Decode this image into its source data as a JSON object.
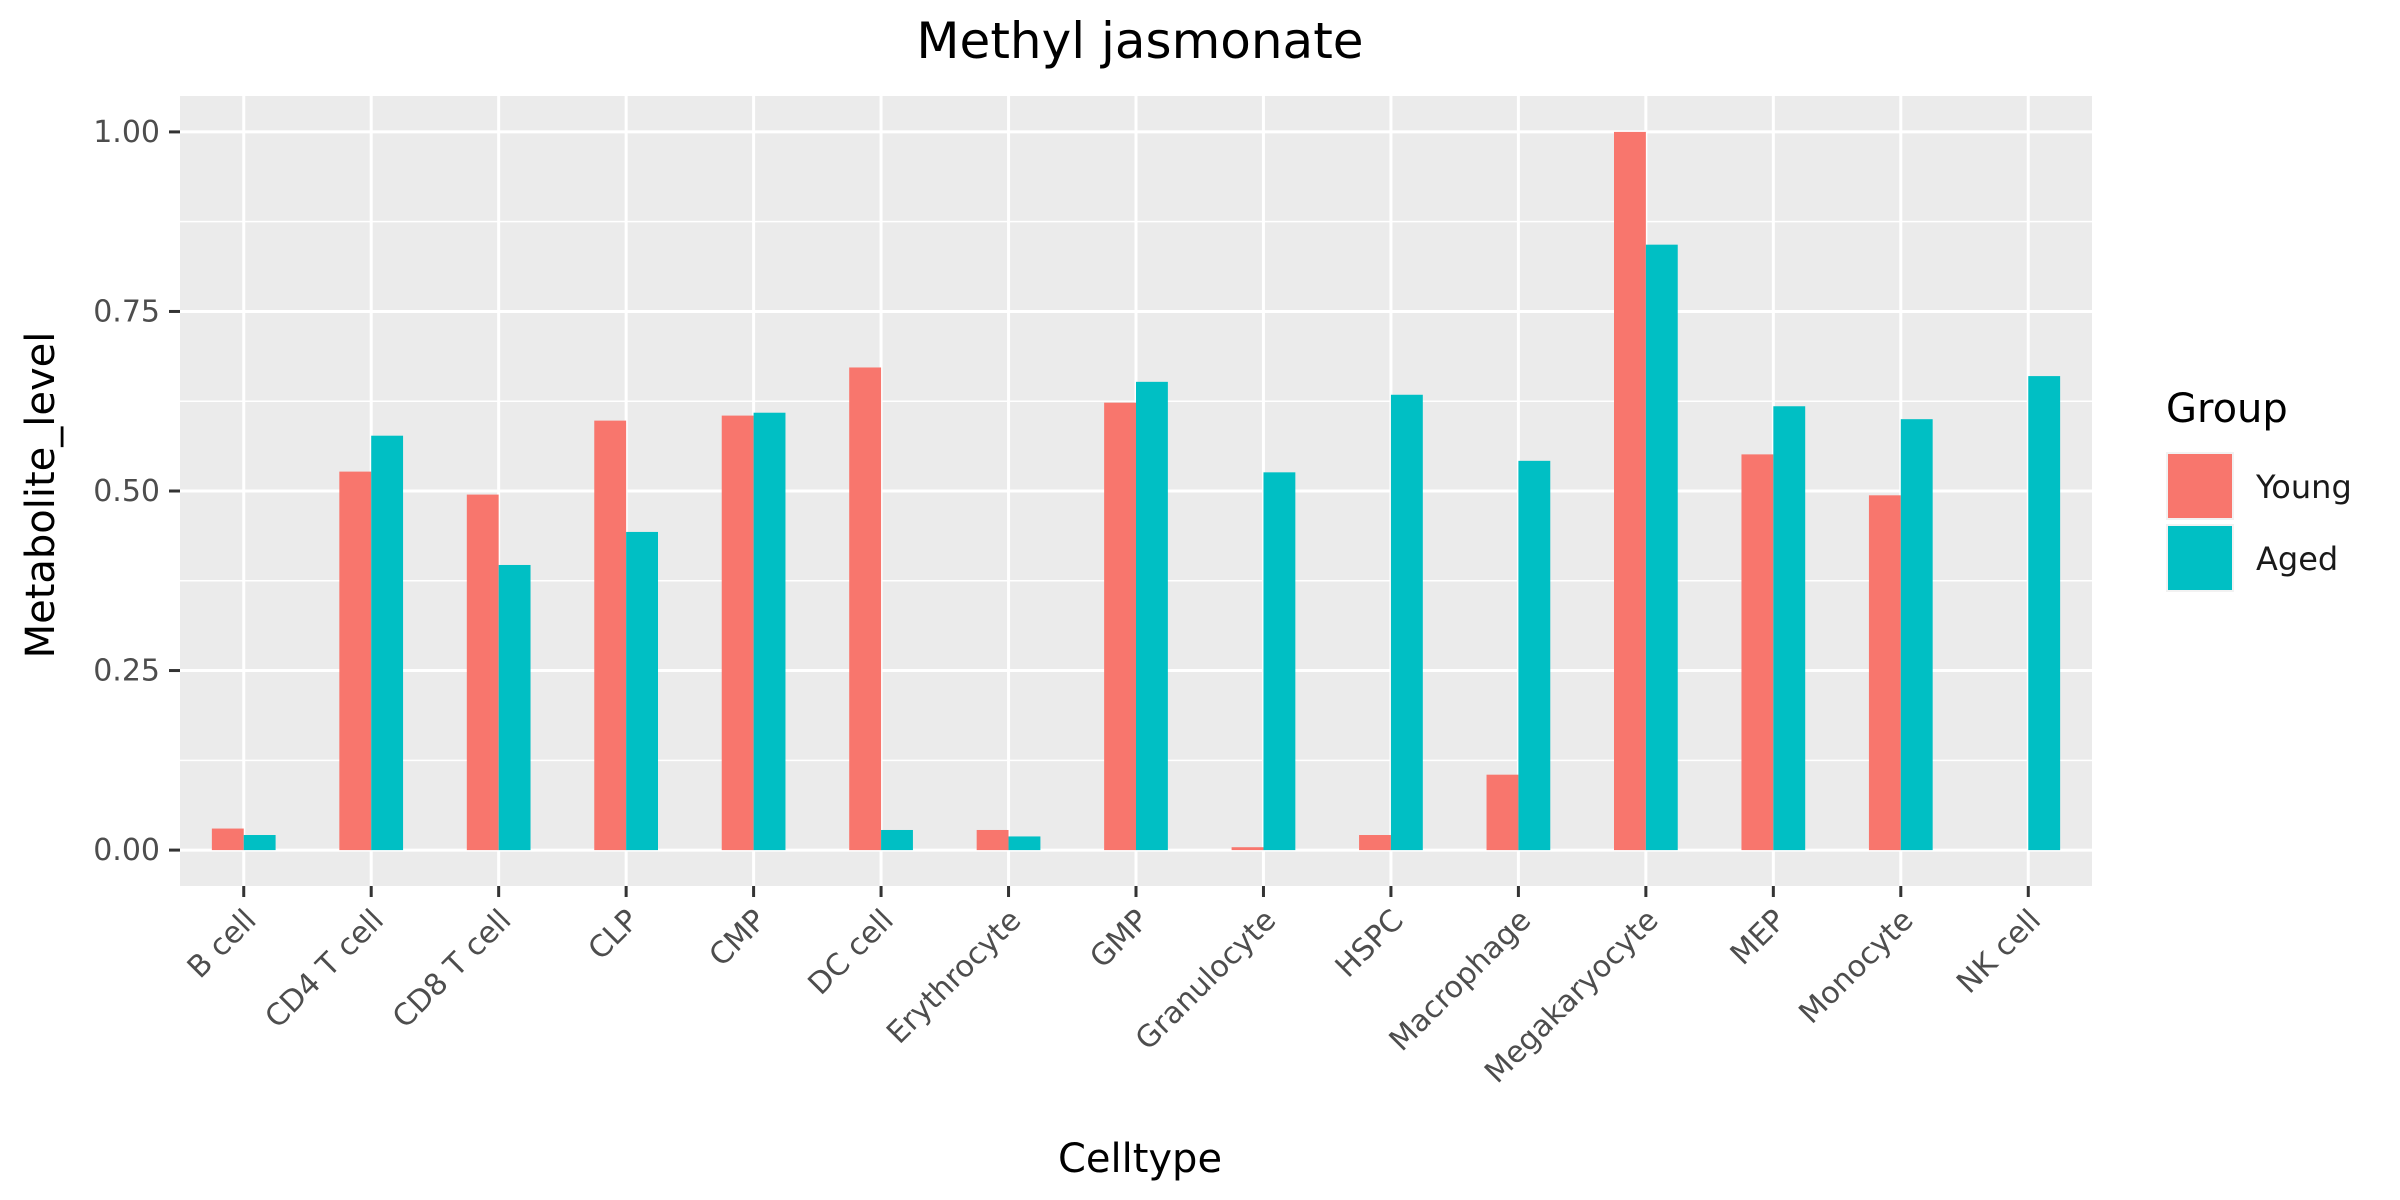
{
  "chart_data": {
    "type": "bar",
    "title": "Methyl jasmonate",
    "xlabel": "Celltype",
    "ylabel": "Metabolite_level",
    "ylim": [
      -0.05,
      1.05
    ],
    "yticks": [
      0.0,
      0.25,
      0.5,
      0.75,
      1.0
    ],
    "ytick_labels": [
      "0.00",
      "0.25",
      "0.50",
      "0.75",
      "1.00"
    ],
    "categories": [
      "B cell",
      "CD4 T cell",
      "CD8 T cell",
      "CLP",
      "CMP",
      "DC cell",
      "Erythrocyte",
      "GMP",
      "Granulocyte",
      "HSPC",
      "Macrophage",
      "Megakaryocyte",
      "MEP",
      "Monocyte",
      "NK cell"
    ],
    "series": [
      {
        "name": "Young",
        "color": "#F8766D",
        "values": [
          0.03,
          0.527,
          0.495,
          0.598,
          0.605,
          0.672,
          0.028,
          0.623,
          0.004,
          0.021,
          0.105,
          1.0,
          0.551,
          0.494,
          0.0
        ]
      },
      {
        "name": "Aged",
        "color": "#00BFC4",
        "values": [
          0.021,
          0.577,
          0.397,
          0.443,
          0.609,
          0.028,
          0.019,
          0.652,
          0.526,
          0.634,
          0.542,
          0.843,
          0.618,
          0.6,
          0.66
        ]
      }
    ],
    "legend": {
      "title": "Group",
      "position": "right"
    },
    "grid": true,
    "panel_background": "#EBEBEB"
  }
}
